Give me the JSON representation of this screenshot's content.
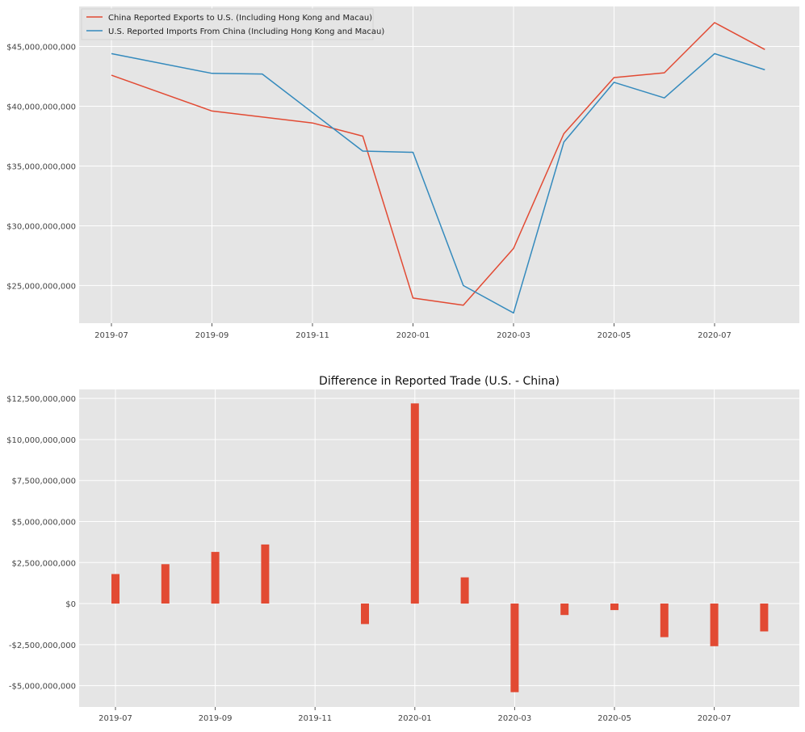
{
  "chart_data": [
    {
      "type": "line",
      "title": "",
      "xlabel": "",
      "ylabel": "",
      "x": [
        "2019-07",
        "2019-08",
        "2019-09",
        "2019-10",
        "2019-11",
        "2019-12",
        "2020-01",
        "2020-02",
        "2020-03",
        "2020-04",
        "2020-05",
        "2020-06",
        "2020-07",
        "2020-08"
      ],
      "x_tick_labels": [
        "2019-07",
        "2019-09",
        "2019-11",
        "2020-01",
        "2020-03",
        "2020-05",
        "2020-07"
      ],
      "y_tick_labels": [
        "$25,000,000,000",
        "$30,000,000,000",
        "$35,000,000,000",
        "$40,000,000,000",
        "$45,000,000,000"
      ],
      "y_ticks": [
        25000000000,
        30000000000,
        35000000000,
        40000000000,
        45000000000
      ],
      "ylim": [
        21850000000,
        48350000000
      ],
      "grid": true,
      "legend_position": "top-left",
      "series": [
        {
          "name": "China Reported Exports to U.S. (Including Hong Kong and Macau)",
          "color": "#E24A33",
          "values": [
            42600000000,
            null,
            39600000000,
            null,
            38600000000,
            37500000000,
            23950000000,
            23350000000,
            28100000000,
            37700000000,
            42400000000,
            42800000000,
            47000000000,
            44750000000
          ]
        },
        {
          "name": "U.S. Reported Imports From China (Including Hong Kong and Macau)",
          "color": "#348ABD",
          "values": [
            44400000000,
            null,
            42750000000,
            42700000000,
            null,
            36250000000,
            36150000000,
            25000000000,
            22700000000,
            37000000000,
            42000000000,
            40700000000,
            44400000000,
            43050000000
          ]
        }
      ]
    },
    {
      "type": "bar",
      "title": "Difference in Reported Trade (U.S. - China)",
      "xlabel": "",
      "ylabel": "",
      "x": [
        "2019-07",
        "2019-08",
        "2019-09",
        "2019-10",
        "2019-11",
        "2019-12",
        "2020-01",
        "2020-02",
        "2020-03",
        "2020-04",
        "2020-05",
        "2020-06",
        "2020-07",
        "2020-08"
      ],
      "x_tick_labels": [
        "2019-07",
        "2019-09",
        "2019-11",
        "2020-01",
        "2020-03",
        "2020-05",
        "2020-07"
      ],
      "y_tick_labels": [
        "-$5,000,000,000",
        "-$2,500,000,000",
        "$0",
        "$2,500,000,000",
        "$5,000,000,000",
        "$7,500,000,000",
        "$10,000,000,000",
        "$12,500,000,000"
      ],
      "y_ticks": [
        -5000000000,
        -2500000000,
        0,
        2500000000,
        5000000000,
        7500000000,
        10000000000,
        12500000000
      ],
      "ylim": [
        -6300000000,
        13050000000
      ],
      "grid": true,
      "color": "#E24A33",
      "values": [
        1800000000,
        2400000000,
        3150000000,
        3600000000,
        0,
        -1250000000,
        12200000000,
        1600000000,
        -5400000000,
        -700000000,
        -400000000,
        -2050000000,
        -2600000000,
        -1700000000
      ]
    }
  ]
}
